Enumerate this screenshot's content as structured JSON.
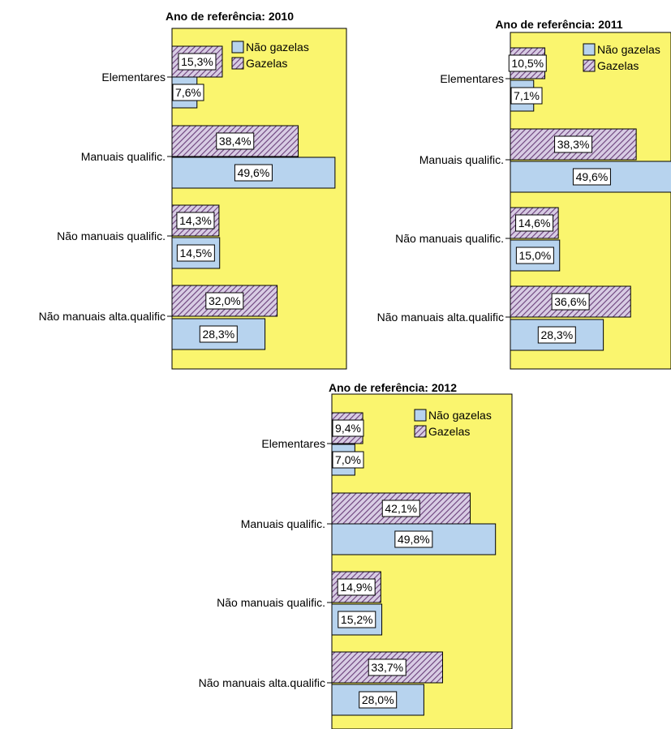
{
  "colors": {
    "plot_background": "#faf56e",
    "nao_gazelas": "#b7d3ee",
    "gazelas_hatch": "#6a3f7a",
    "gazelas_background": "#d8cce4"
  },
  "chart_data": [
    {
      "type": "bar",
      "orientation": "horizontal",
      "title": "Ano de referência: 2010",
      "categories": [
        "Elementares",
        "Manuais qualific.",
        "Não manuais qualific.",
        "Não manuais alta.qualific"
      ],
      "series": [
        {
          "name": "Gazelas",
          "values": [
            15.3,
            38.4,
            14.3,
            32.0
          ],
          "labels": [
            "15,3%",
            "38,4%",
            "14,3%",
            "32,0%"
          ]
        },
        {
          "name": "Não gazelas",
          "values": [
            7.6,
            49.6,
            14.5,
            28.3
          ],
          "labels": [
            "7,6%",
            "49,6%",
            "14,5%",
            "28,3%"
          ]
        }
      ],
      "legend": {
        "position": "top-right",
        "entries": [
          "Não gazelas",
          "Gazelas"
        ]
      },
      "xlim": [
        0,
        50
      ]
    },
    {
      "type": "bar",
      "orientation": "horizontal",
      "title": "Ano de referência: 2011",
      "categories": [
        "Elementares",
        "Manuais qualific.",
        "Não manuais qualific.",
        "Não manuais alta.qualific"
      ],
      "series": [
        {
          "name": "Gazelas",
          "values": [
            10.5,
            38.3,
            14.6,
            36.6
          ],
          "labels": [
            "10,5%",
            "38,3%",
            "14,6%",
            "36,6%"
          ]
        },
        {
          "name": "Não gazelas",
          "values": [
            7.1,
            49.6,
            15.0,
            28.3
          ],
          "labels": [
            "7,1%",
            "49,6%",
            "15,0%",
            "28,3%"
          ]
        }
      ],
      "legend": {
        "position": "top-right",
        "entries": [
          "Não gazelas",
          "Gazelas"
        ]
      },
      "xlim": [
        0,
        50
      ]
    },
    {
      "type": "bar",
      "orientation": "horizontal",
      "title": "Ano de referência: 2012",
      "categories": [
        "Elementares",
        "Manuais qualific.",
        "Não manuais qualific.",
        "Não manuais alta.qualific"
      ],
      "series": [
        {
          "name": "Gazelas",
          "values": [
            9.4,
            42.1,
            14.9,
            33.7
          ],
          "labels": [
            "9,4%",
            "42,1%",
            "14,9%",
            "33,7%"
          ]
        },
        {
          "name": "Não gazelas",
          "values": [
            7.0,
            49.8,
            15.2,
            28.0
          ],
          "labels": [
            "7,0%",
            "49,8%",
            "15,2%",
            "28,0%"
          ]
        }
      ],
      "legend": {
        "position": "top-right",
        "entries": [
          "Não gazelas",
          "Gazelas"
        ]
      },
      "xlim": [
        0,
        50
      ]
    }
  ]
}
